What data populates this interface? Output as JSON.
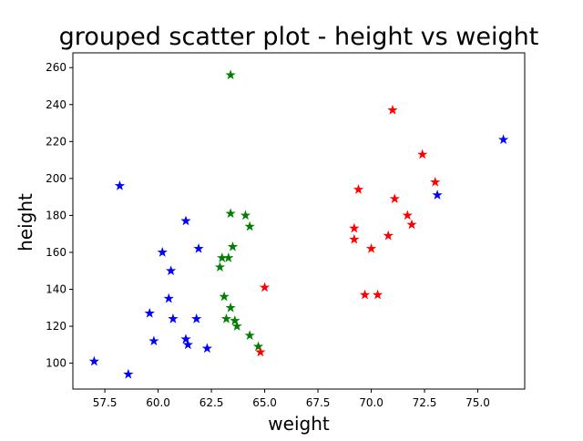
{
  "chart_data": {
    "type": "scatter",
    "title": "grouped scatter plot - height vs weight",
    "xlabel": "weight",
    "ylabel": "height",
    "xlim": [
      56.0,
      77.2
    ],
    "ylim": [
      86,
      268
    ],
    "x_ticks": [
      57.5,
      60.0,
      62.5,
      65.0,
      67.5,
      70.0,
      72.5,
      75.0
    ],
    "x_tick_labels": [
      "57.5",
      "60.0",
      "62.5",
      "65.0",
      "67.5",
      "70.0",
      "72.5",
      "75.0"
    ],
    "y_ticks": [
      100,
      120,
      140,
      160,
      180,
      200,
      220,
      240,
      260
    ],
    "y_tick_labels": [
      "100",
      "120",
      "140",
      "160",
      "180",
      "200",
      "220",
      "240",
      "260"
    ],
    "marker": "star",
    "grid": false,
    "legend": false,
    "series": [
      {
        "color": "#0000ff",
        "points": [
          [
            57.0,
            101
          ],
          [
            58.2,
            196
          ],
          [
            58.6,
            94
          ],
          [
            59.6,
            127
          ],
          [
            59.8,
            112
          ],
          [
            60.2,
            160
          ],
          [
            60.5,
            135
          ],
          [
            60.6,
            150
          ],
          [
            60.7,
            124
          ],
          [
            61.3,
            177
          ],
          [
            61.3,
            113
          ],
          [
            61.4,
            110
          ],
          [
            61.8,
            124
          ],
          [
            61.9,
            162
          ],
          [
            62.3,
            108
          ],
          [
            73.1,
            191
          ],
          [
            76.2,
            221
          ]
        ]
      },
      {
        "color": "#008000",
        "points": [
          [
            63.4,
            256
          ],
          [
            63.4,
            181
          ],
          [
            64.1,
            180
          ],
          [
            64.3,
            174
          ],
          [
            63.5,
            163
          ],
          [
            63.0,
            157
          ],
          [
            63.3,
            157
          ],
          [
            62.9,
            152
          ],
          [
            63.1,
            136
          ],
          [
            63.4,
            130
          ],
          [
            63.2,
            124
          ],
          [
            63.6,
            123
          ],
          [
            63.7,
            120
          ],
          [
            64.3,
            115
          ],
          [
            64.7,
            109
          ]
        ]
      },
      {
        "color": "#ff0000",
        "points": [
          [
            71.0,
            237
          ],
          [
            72.4,
            213
          ],
          [
            73.0,
            198
          ],
          [
            69.4,
            194
          ],
          [
            71.1,
            189
          ],
          [
            71.7,
            180
          ],
          [
            71.9,
            175
          ],
          [
            69.2,
            173
          ],
          [
            69.2,
            167
          ],
          [
            70.8,
            169
          ],
          [
            70.0,
            162
          ],
          [
            65.0,
            141
          ],
          [
            69.7,
            137
          ],
          [
            70.3,
            137
          ],
          [
            64.8,
            106
          ]
        ]
      }
    ]
  }
}
